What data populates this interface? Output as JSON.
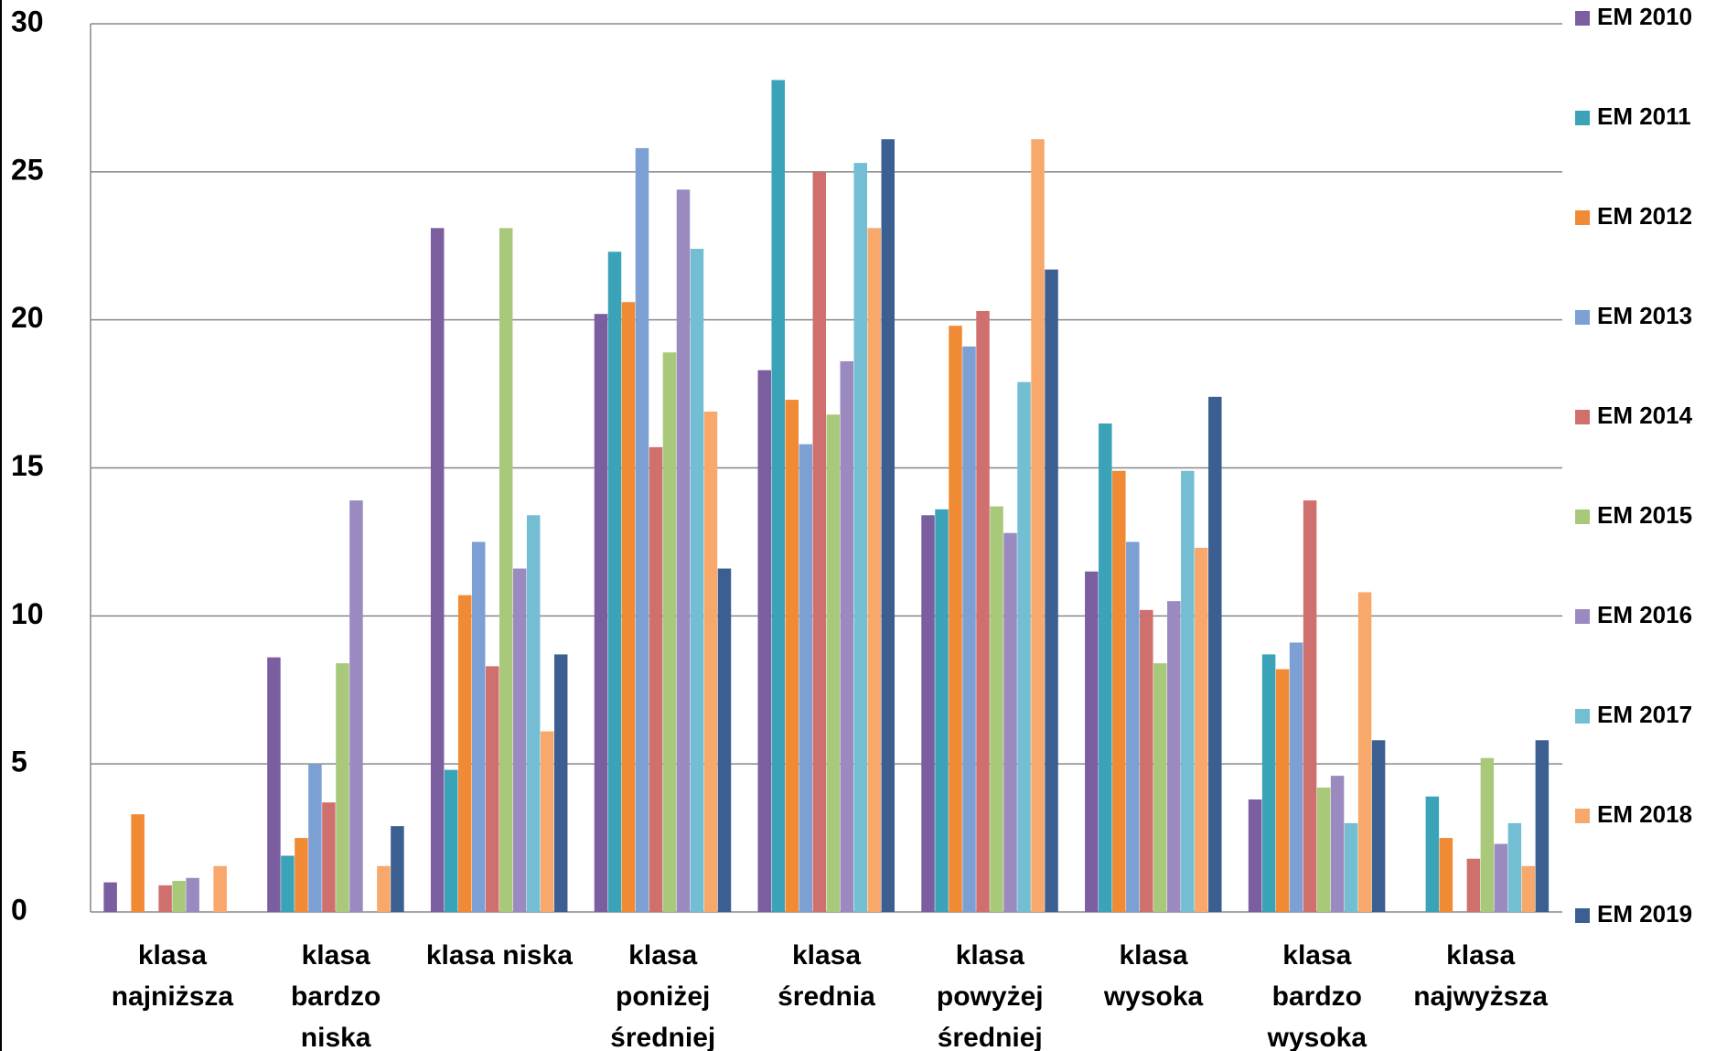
{
  "chart_data": {
    "type": "bar",
    "categories": [
      "klasa najniższa",
      "klasa bardzo niska",
      "klasa niska",
      "klasa poniżej średniej",
      "klasa średnia",
      "klasa powyżej średniej",
      "klasa wysoka",
      "klasa bardzo wysoka",
      "klasa najwyższa"
    ],
    "series": [
      {
        "name": "EM 2010",
        "color": "#7b5ea0",
        "values": [
          1.0,
          8.6,
          23.1,
          20.2,
          18.3,
          13.4,
          11.5,
          3.8,
          0
        ]
      },
      {
        "name": "EM 2011",
        "color": "#3aa3b8",
        "values": [
          0,
          1.9,
          4.8,
          22.3,
          28.1,
          13.6,
          16.5,
          8.7,
          3.9
        ]
      },
      {
        "name": "EM 2012",
        "color": "#f08a35",
        "values": [
          3.3,
          2.5,
          10.7,
          20.6,
          17.3,
          19.8,
          14.9,
          8.2,
          2.5
        ]
      },
      {
        "name": "EM 2013",
        "color": "#7c9fd4",
        "values": [
          0,
          5.0,
          12.5,
          25.8,
          15.8,
          19.1,
          12.5,
          9.1,
          0
        ]
      },
      {
        "name": "EM 2014",
        "color": "#d0706e",
        "values": [
          0.9,
          3.7,
          8.3,
          15.7,
          25.0,
          20.3,
          10.2,
          13.9,
          1.8
        ]
      },
      {
        "name": "EM 2015",
        "color": "#a9c97a",
        "values": [
          1.05,
          8.4,
          23.1,
          18.9,
          16.8,
          13.7,
          8.4,
          4.2,
          5.2
        ]
      },
      {
        "name": "EM 2016",
        "color": "#9b8abf",
        "values": [
          1.15,
          13.9,
          11.6,
          24.4,
          18.6,
          12.8,
          10.5,
          4.6,
          2.3
        ]
      },
      {
        "name": "EM 2017",
        "color": "#74bed3",
        "values": [
          0,
          0,
          13.4,
          22.4,
          25.3,
          17.9,
          14.9,
          3.0,
          3.0
        ]
      },
      {
        "name": "EM 2018",
        "color": "#f8a86b",
        "values": [
          1.55,
          1.55,
          6.1,
          16.9,
          23.1,
          26.1,
          12.3,
          10.8,
          1.55
        ]
      },
      {
        "name": "EM 2019",
        "color": "#3c5f91",
        "values": [
          0,
          2.9,
          8.7,
          11.6,
          26.1,
          21.7,
          17.4,
          5.8,
          5.8
        ]
      }
    ],
    "ylim": [
      0,
      30
    ],
    "yticks": [
      0,
      5,
      10,
      15,
      20,
      25,
      30
    ],
    "grid": true,
    "legend": "right"
  }
}
